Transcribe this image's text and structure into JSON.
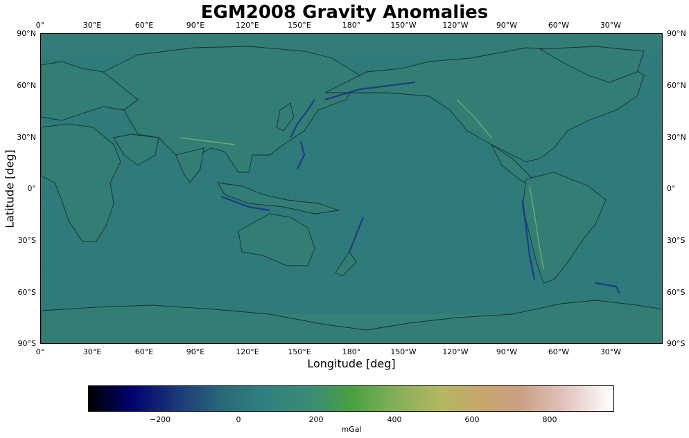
{
  "title": "EGM2008 Gravity Anomalies",
  "map": {
    "xlabel": "Longitude [deg]",
    "ylabel": "Latitude [deg]",
    "x_ticks": [
      "0°",
      "30°E",
      "60°E",
      "90°E",
      "120°E",
      "150°E",
      "180°",
      "150°W",
      "120°W",
      "90°W",
      "60°W",
      "30°W"
    ],
    "y_ticks": [
      "90°N",
      "60°N",
      "30°N",
      "0°",
      "30°S",
      "60°S",
      "90°S"
    ],
    "colors": {
      "ocean": "#2f7a7a",
      "land_outline": "#1a2f2f",
      "trench": "#1c2f8a",
      "mountain": "#7aa86a"
    }
  },
  "colorbar": {
    "unit": "mGal",
    "ticks": [
      "−200",
      "0",
      "200",
      "400",
      "600",
      "800"
    ],
    "colormap": "gist_earth",
    "min": -380,
    "max": 970
  }
}
